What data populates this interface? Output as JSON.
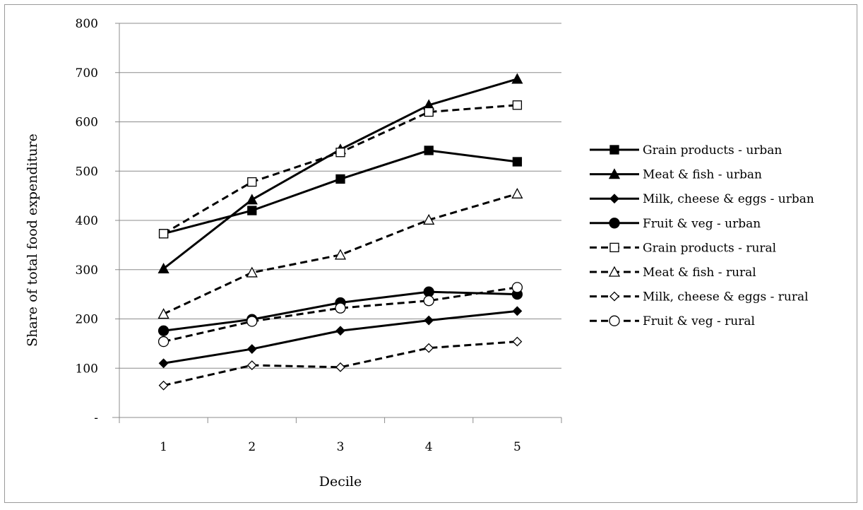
{
  "chart_data": {
    "type": "line",
    "title": "",
    "xlabel": "Decile",
    "ylabel": "Share of total food expenditure",
    "categories": [
      "1",
      "2",
      "3",
      "4",
      "5"
    ],
    "y_ticks": [
      "-",
      "100",
      "200",
      "300",
      "400",
      "500",
      "600",
      "700",
      "800"
    ],
    "ylim": [
      0,
      800
    ],
    "grid": true,
    "legend_position": "right",
    "series": [
      {
        "name": "Grain products - urban",
        "values": [
          373,
          420,
          484,
          542,
          519
        ],
        "dash": "solid",
        "marker": "square",
        "fill": "filled"
      },
      {
        "name": "Meat & fish - urban",
        "values": [
          302,
          442,
          544,
          634,
          687
        ],
        "dash": "solid",
        "marker": "triangle",
        "fill": "filled"
      },
      {
        "name": "Milk, cheese & eggs - urban",
        "values": [
          110,
          139,
          176,
          197,
          216
        ],
        "dash": "solid",
        "marker": "diamond",
        "fill": "filled"
      },
      {
        "name": "Fruit & veg - urban",
        "values": [
          176,
          199,
          233,
          255,
          250
        ],
        "dash": "solid",
        "marker": "circle",
        "fill": "filled"
      },
      {
        "name": "Grain products - rural",
        "values": [
          373,
          478,
          538,
          620,
          634
        ],
        "dash": "dashed",
        "marker": "square",
        "fill": "open"
      },
      {
        "name": "Meat & fish - rural",
        "values": [
          210,
          294,
          330,
          401,
          454
        ],
        "dash": "dashed",
        "marker": "triangle",
        "fill": "open"
      },
      {
        "name": "Milk, cheese & eggs - rural",
        "values": [
          65,
          106,
          102,
          141,
          154
        ],
        "dash": "dashed",
        "marker": "diamond",
        "fill": "open"
      },
      {
        "name": "Fruit & veg - rural",
        "values": [
          154,
          195,
          222,
          237,
          264
        ],
        "dash": "dashed",
        "marker": "circle",
        "fill": "open"
      }
    ]
  }
}
